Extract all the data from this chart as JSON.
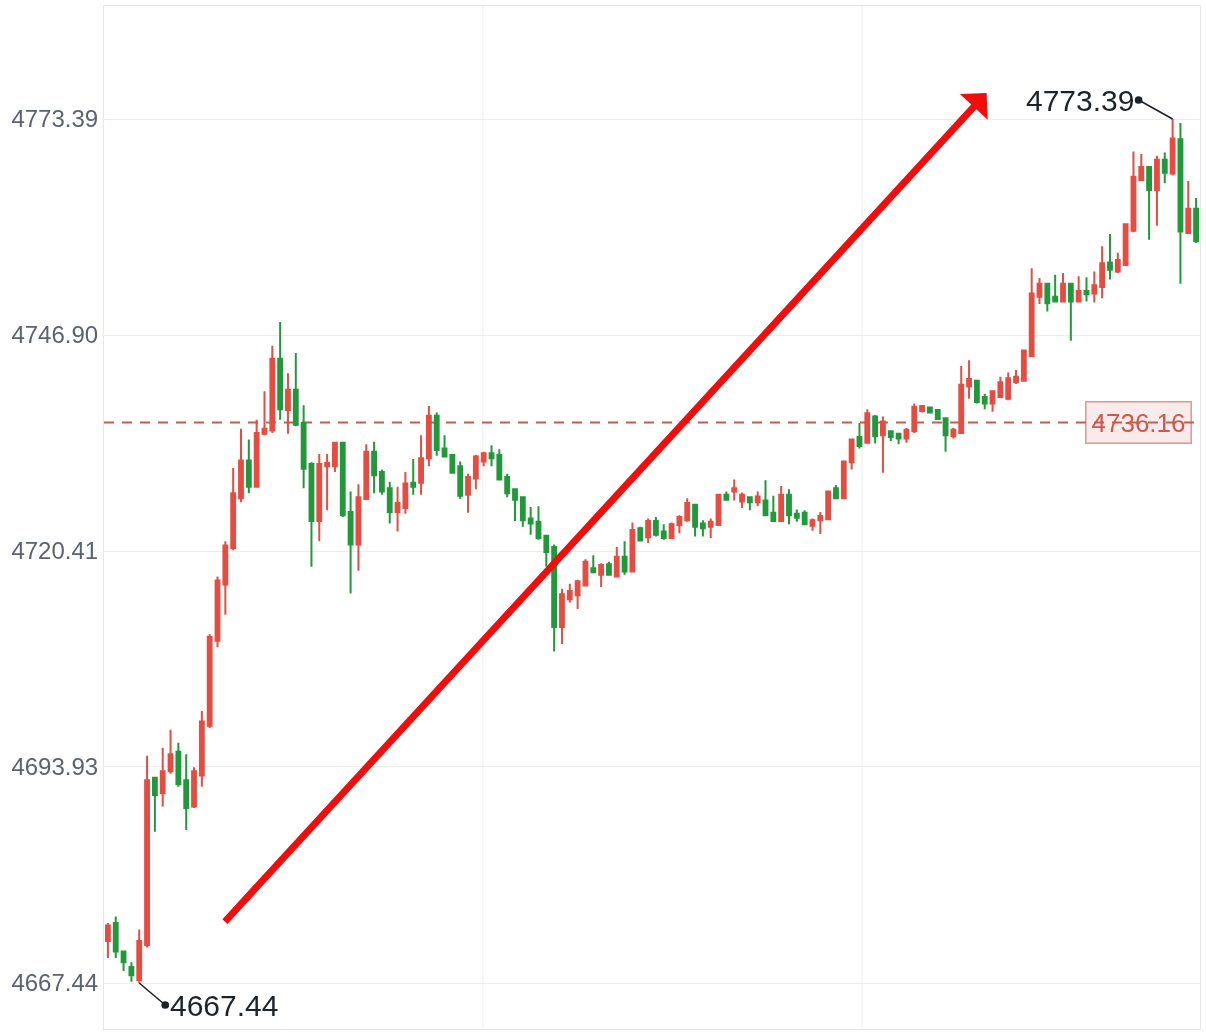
{
  "chart_data": {
    "type": "candlestick",
    "categories": [
      null,
      null,
      null,
      null,
      null,
      null,
      null,
      null,
      null,
      null,
      null,
      null,
      null,
      null,
      null,
      null,
      null,
      null,
      null,
      null,
      null,
      null,
      null,
      null,
      null,
      null,
      null,
      null,
      null,
      null,
      null,
      null,
      null,
      null,
      null,
      null,
      null,
      null,
      null,
      null,
      null,
      null,
      null,
      null,
      null,
      null,
      null,
      null,
      null,
      null,
      null,
      null,
      null,
      null,
      null,
      null,
      null,
      null,
      null,
      null,
      null,
      null,
      null,
      null,
      null,
      null,
      null,
      null,
      null,
      null,
      null,
      null,
      null,
      null,
      null,
      null,
      null,
      null,
      null,
      null,
      null,
      null,
      null,
      null,
      null,
      null,
      null,
      null,
      null,
      null,
      null,
      null,
      null,
      null,
      null,
      null,
      null,
      null,
      null,
      null,
      null,
      null,
      null,
      null,
      null,
      null,
      null,
      null,
      null,
      null,
      null,
      null,
      null,
      null,
      null,
      null,
      null,
      null,
      null,
      null,
      null,
      null,
      null,
      null,
      null,
      null,
      null,
      null,
      null,
      null,
      null,
      null,
      null,
      null,
      null,
      null,
      null,
      null,
      null,
      null
    ],
    "ohlc": [
      [
        4672.6,
        4674.8,
        4670.5,
        4674.5
      ],
      [
        4674.8,
        4675.6,
        4670.5,
        4671.3
      ],
      [
        4671.3,
        4671.3,
        4668.9,
        4670.0
      ],
      [
        4669.4,
        4670.0,
        4667.6,
        4668.4
      ],
      [
        4667.8,
        4674.0,
        4667.44,
        4672.6
      ],
      [
        4672.1,
        4695.3,
        4671.8,
        4692.3
      ],
      [
        4692.6,
        4692.6,
        4686.0,
        4690.5
      ],
      [
        4690.7,
        4696.3,
        4689.1,
        4693.4
      ],
      [
        4693.4,
        4698.5,
        4693.1,
        4695.5
      ],
      [
        4695.8,
        4696.9,
        4691.5,
        4691.8
      ],
      [
        4692.3,
        4695.5,
        4686.2,
        4688.9
      ],
      [
        4689.1,
        4693.9,
        4688.9,
        4693.4
      ],
      [
        4692.9,
        4700.8,
        4691.5,
        4699.5
      ],
      [
        4699.0,
        4710.2,
        4698.7,
        4709.9
      ],
      [
        4709.4,
        4717.3,
        4708.6,
        4716.8
      ],
      [
        4716.3,
        4721.6,
        4712.6,
        4721.1
      ],
      [
        4720.8,
        4730.6,
        4720.5,
        4727.5
      ],
      [
        4726.9,
        4735.4,
        4726.4,
        4731.5
      ],
      [
        4731.5,
        4734.1,
        4727.5,
        4728.3
      ],
      [
        4728.3,
        4736.5,
        4728.3,
        4734.9
      ],
      [
        4734.8,
        4740.0,
        4734.6,
        4735.4
      ],
      [
        4735.2,
        4745.6,
        4734.9,
        4744.0
      ],
      [
        4744.0,
        4748.5,
        4736.5,
        4737.8
      ],
      [
        4737.7,
        4742.2,
        4734.8,
        4740.2
      ],
      [
        4740.2,
        4744.7,
        4735.7,
        4735.9
      ],
      [
        4736.1,
        4738.3,
        4728.1,
        4730.5
      ],
      [
        4731.1,
        4731.3,
        4718.5,
        4724.1
      ],
      [
        4724.1,
        4732.3,
        4721.6,
        4731.1
      ],
      [
        4730.8,
        4732.3,
        4725.4,
        4731.2
      ],
      [
        4730.8,
        4733.8,
        4730.1,
        4733.7
      ],
      [
        4733.7,
        4733.7,
        4724.6,
        4724.8
      ],
      [
        4725.2,
        4727.7,
        4715.2,
        4721.2
      ],
      [
        4721.2,
        4728.6,
        4718.0,
        4727.0
      ],
      [
        4726.8,
        4733.5,
        4726.8,
        4732.6
      ],
      [
        4732.6,
        4733.8,
        4727.5,
        4729.7
      ],
      [
        4730.1,
        4730.4,
        4727.3,
        4727.7
      ],
      [
        4728.1,
        4728.9,
        4723.8,
        4725.2
      ],
      [
        4725.2,
        4728.3,
        4722.8,
        4726.3
      ],
      [
        4725.7,
        4730.1,
        4725.0,
        4728.7
      ],
      [
        4728.8,
        4731.7,
        4727.3,
        4728.3
      ],
      [
        4728.8,
        4734.6,
        4727.3,
        4731.8
      ],
      [
        4731.8,
        4738.2,
        4730.8,
        4737.0
      ],
      [
        4737.0,
        4737.4,
        4732.1,
        4732.8
      ],
      [
        4733.0,
        4734.6,
        4732.0,
        4732.0
      ],
      [
        4732.2,
        4732.3,
        4729.9,
        4730.0
      ],
      [
        4730.8,
        4731.4,
        4726.8,
        4727.2
      ],
      [
        4727.3,
        4729.9,
        4725.1,
        4729.5
      ],
      [
        4729.3,
        4732.2,
        4728.0,
        4732.0
      ],
      [
        4731.4,
        4732.6,
        4730.8,
        4732.4
      ],
      [
        4732.4,
        4733.4,
        4730.8,
        4731.8
      ],
      [
        4732.2,
        4732.9,
        4729.2,
        4729.2
      ],
      [
        4729.5,
        4729.9,
        4727.0,
        4727.5
      ],
      [
        4728.0,
        4728.1,
        4724.1,
        4726.7
      ],
      [
        4727.0,
        4727.1,
        4723.4,
        4724.2
      ],
      [
        4724.4,
        4725.8,
        4722.4,
        4723.8
      ],
      [
        4724.0,
        4725.9,
        4721.8,
        4722.0
      ],
      [
        4722.3,
        4722.3,
        4718.5,
        4720.3
      ],
      [
        4720.9,
        4721.2,
        4708.1,
        4711.1
      ],
      [
        4711.1,
        4715.8,
        4709.0,
        4715.1
      ],
      [
        4714.5,
        4716.4,
        4714.1,
        4715.5
      ],
      [
        4715.0,
        4716.9,
        4713.3,
        4716.7
      ],
      [
        4716.2,
        4719.4,
        4716.2,
        4719.1
      ],
      [
        4718.3,
        4719.9,
        4717.7,
        4717.8
      ],
      [
        4717.5,
        4718.9,
        4716.0,
        4718.7
      ],
      [
        4718.8,
        4719.1,
        4717.4,
        4717.5
      ],
      [
        4717.3,
        4720.9,
        4717.3,
        4719.7
      ],
      [
        4719.7,
        4721.6,
        4717.5,
        4717.9
      ],
      [
        4717.9,
        4723.9,
        4717.8,
        4723.0
      ],
      [
        4723.2,
        4723.4,
        4721.6,
        4721.7
      ],
      [
        4722.1,
        4724.4,
        4721.4,
        4724.1
      ],
      [
        4724.1,
        4724.6,
        4722.2,
        4722.4
      ],
      [
        4722.8,
        4723.7,
        4721.8,
        4722.0
      ],
      [
        4722.0,
        4723.9,
        4722.0,
        4723.7
      ],
      [
        4723.6,
        4724.8,
        4722.6,
        4724.6
      ],
      [
        4724.2,
        4726.9,
        4724.0,
        4726.3
      ],
      [
        4726.1,
        4726.2,
        4722.2,
        4723.4
      ],
      [
        4723.8,
        4724.2,
        4722.2,
        4723.2
      ],
      [
        4723.4,
        4724.4,
        4722.0,
        4724.0
      ],
      [
        4723.6,
        4727.4,
        4723.5,
        4727.3
      ],
      [
        4727.3,
        4727.7,
        4726.6,
        4726.7
      ],
      [
        4727.7,
        4729.2,
        4726.6,
        4728.1
      ],
      [
        4726.5,
        4727.6,
        4725.7,
        4727.3
      ],
      [
        4727.0,
        4727.1,
        4725.4,
        4726.4
      ],
      [
        4726.4,
        4727.7,
        4725.9,
        4727.1
      ],
      [
        4726.6,
        4729.1,
        4724.7,
        4724.8
      ],
      [
        4725.1,
        4727.2,
        4724.0,
        4724.1
      ],
      [
        4724.1,
        4728.4,
        4724.0,
        4727.3
      ],
      [
        4727.3,
        4728.0,
        4723.7,
        4724.8
      ],
      [
        4725.0,
        4725.5,
        4724.0,
        4724.5
      ],
      [
        4725.1,
        4725.4,
        4723.6,
        4723.7
      ],
      [
        4723.5,
        4724.4,
        4722.9,
        4724.2
      ],
      [
        4724.2,
        4725.2,
        4722.5,
        4724.7
      ],
      [
        4724.3,
        4727.8,
        4724.2,
        4727.7
      ],
      [
        4728.1,
        4728.5,
        4726.9,
        4726.9
      ],
      [
        4726.9,
        4731.5,
        4726.8,
        4731.4
      ],
      [
        4731.3,
        4734.2,
        4730.4,
        4734.1
      ],
      [
        4734.4,
        4736.1,
        4733.0,
        4733.3
      ],
      [
        4733.7,
        4737.8,
        4733.6,
        4737.3
      ],
      [
        4736.9,
        4737.1,
        4733.6,
        4734.5
      ],
      [
        4734.6,
        4736.9,
        4730.0,
        4736.3
      ],
      [
        4735.1,
        4735.1,
        4733.9,
        4734.4
      ],
      [
        4734.8,
        4734.8,
        4733.5,
        4734.2
      ],
      [
        4734.2,
        4735.5,
        4733.7,
        4735.3
      ],
      [
        4735.1,
        4738.5,
        4734.9,
        4738.1
      ],
      [
        4737.6,
        4738.3,
        4737.4,
        4738.2
      ],
      [
        4738.0,
        4738.1,
        4737.3,
        4737.4
      ],
      [
        4737.7,
        4737.7,
        4736.5,
        4736.6
      ],
      [
        4736.7,
        4736.7,
        4732.6,
        4734.6
      ],
      [
        4734.5,
        4735.5,
        4734.2,
        4735.3
      ],
      [
        4734.9,
        4743.1,
        4734.9,
        4740.8
      ],
      [
        4740.6,
        4743.8,
        4739.1,
        4741.5
      ],
      [
        4741.3,
        4741.3,
        4738.5,
        4738.7
      ],
      [
        4739.3,
        4739.7,
        4737.8,
        4738.5
      ],
      [
        4738.5,
        4740.1,
        4737.5,
        4740.0
      ],
      [
        4739.3,
        4741.8,
        4739.3,
        4741.1
      ],
      [
        4739.1,
        4742.3,
        4738.9,
        4741.6
      ],
      [
        4741.1,
        4742.6,
        4740.9,
        4741.8
      ],
      [
        4741.3,
        4745.1,
        4741.3,
        4745.0
      ],
      [
        4744.3,
        4755.1,
        4744.3,
        4752.0
      ],
      [
        4751.6,
        4753.9,
        4750.7,
        4753.2
      ],
      [
        4753.2,
        4753.2,
        4749.8,
        4750.8
      ],
      [
        4751.6,
        4754.3,
        4750.9,
        4751.0
      ],
      [
        4751.0,
        4754.5,
        4751.0,
        4753.2
      ],
      [
        4753.2,
        4753.2,
        4746.2,
        4751.0
      ],
      [
        4751.0,
        4754.1,
        4751.0,
        4752.3
      ],
      [
        4752.3,
        4754.0,
        4751.0,
        4751.9
      ],
      [
        4752.0,
        4754.7,
        4750.9,
        4753.0
      ],
      [
        4752.8,
        4757.8,
        4751.4,
        4755.7
      ],
      [
        4755.8,
        4759.3,
        4753.7,
        4754.9
      ],
      [
        4754.7,
        4757.0,
        4754.5,
        4756.1
      ],
      [
        4755.5,
        4760.5,
        4755.4,
        4760.5
      ],
      [
        4759.7,
        4769.4,
        4759.5,
        4766.3
      ],
      [
        4765.9,
        4769.1,
        4765.8,
        4767.5
      ],
      [
        4767.5,
        4767.5,
        4758.6,
        4764.7
      ],
      [
        4764.7,
        4768.9,
        4760.3,
        4768.4
      ],
      [
        4768.4,
        4769.3,
        4765.5,
        4766.8
      ],
      [
        4766.7,
        4773.39,
        4766.5,
        4771.0
      ],
      [
        4770.9,
        4772.9,
        4753.2,
        4759.6
      ],
      [
        4759.4,
        4765.8,
        4759.3,
        4762.4
      ],
      [
        4762.4,
        4763.7,
        4758.2,
        4758.4
      ]
    ],
    "colors": [
      "#e54d42",
      "#21993b",
      "#21993b",
      "#21993b",
      "#e54d42",
      "#e54d42",
      "#21993b",
      "#e54d42",
      "#e54d42",
      "#21993b",
      "#21993b",
      "#e54d42",
      "#e54d42",
      "#e54d42",
      "#e54d42",
      "#e54d42",
      "#e54d42",
      "#e54d42",
      "#21993b",
      "#e54d42",
      "#e54d42",
      "#e54d42",
      "#21993b",
      "#e54d42",
      "#21993b",
      "#21993b",
      "#21993b",
      "#e54d42",
      "#e54d42",
      "#e54d42",
      "#21993b",
      "#21993b",
      "#e54d42",
      "#e54d42",
      "#21993b",
      "#21993b",
      "#21993b",
      "#e54d42",
      "#e54d42",
      "#21993b",
      "#e54d42",
      "#e54d42",
      "#21993b",
      "#21993b",
      "#21993b",
      "#21993b",
      "#e54d42",
      "#e54d42",
      "#e54d42",
      "#21993b",
      "#21993b",
      "#21993b",
      "#21993b",
      "#21993b",
      "#21993b",
      "#21993b",
      "#21993b",
      "#21993b",
      "#e54d42",
      "#e54d42",
      "#e54d42",
      "#e54d42",
      "#21993b",
      "#e54d42",
      "#21993b",
      "#e54d42",
      "#21993b",
      "#e54d42",
      "#21993b",
      "#e54d42",
      "#21993b",
      "#21993b",
      "#e54d42",
      "#e54d42",
      "#e54d42",
      "#21993b",
      "#21993b",
      "#e54d42",
      "#e54d42",
      "#21993b",
      "#e54d42",
      "#e54d42",
      "#21993b",
      "#e54d42",
      "#21993b",
      "#21993b",
      "#e54d42",
      "#21993b",
      "#21993b",
      "#21993b",
      "#e54d42",
      "#e54d42",
      "#e54d42",
      "#21993b",
      "#e54d42",
      "#e54d42",
      "#21993b",
      "#e54d42",
      "#21993b",
      "#e54d42",
      "#21993b",
      "#21993b",
      "#e54d42",
      "#e54d42",
      "#e54d42",
      "#21993b",
      "#21993b",
      "#21993b",
      "#e54d42",
      "#e54d42",
      "#e54d42",
      "#21993b",
      "#21993b",
      "#e54d42",
      "#e54d42",
      "#e54d42",
      "#e54d42",
      "#e54d42",
      "#e54d42",
      "#e54d42",
      "#21993b",
      "#21993b",
      "#e54d42",
      "#21993b",
      "#e54d42",
      "#21993b",
      "#e54d42",
      "#e54d42",
      "#21993b",
      "#e54d42",
      "#e54d42",
      "#e54d42",
      "#e54d42",
      "#21993b",
      "#e54d42",
      "#21993b",
      "#e54d42",
      "#21993b",
      "#e54d42",
      "#21993b"
    ],
    "ylim": [
      4661.8,
      4787.25
    ],
    "yticks": [
      4667.44,
      4693.93,
      4720.41,
      {
        "value": 4746.9,
        "label": "4746.90"
      },
      4773.39
    ],
    "grid": "y",
    "tick_labels": "y",
    "ref_lines": [
      {
        "axis": "y",
        "value": 4736.16,
        "label": "4736.16",
        "color": "#d0574e",
        "line_style": "dashed"
      }
    ],
    "annotations": [
      "4773.39",
      "4667.44"
    ]
  }
}
